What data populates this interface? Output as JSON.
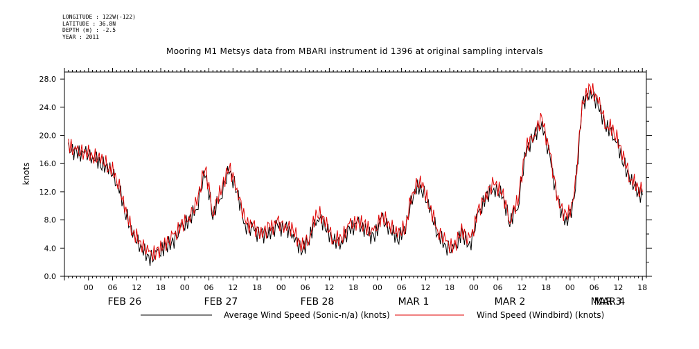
{
  "header": {
    "longitude": "LONGITUDE : 122W(-122)",
    "latitude": "LATITUDE : 36.8N",
    "depth": "DEPTH (m) : -2.5",
    "year": "YEAR : 2011"
  },
  "chart_data": {
    "type": "line",
    "title": "Mooring M1 Metsys data from MBARI instrument id 1396 at original sampling intervals",
    "xlabel": "",
    "ylabel": "knots",
    "xlim_hours": [
      -6,
      139
    ],
    "ylim": [
      0,
      29
    ],
    "yticks": [
      0.0,
      4.0,
      8.0,
      12.0,
      16.0,
      20.0,
      24.0,
      28.0
    ],
    "ytick_labels": [
      "0.0",
      "4.0",
      "8.0",
      "12.0",
      "16.0",
      "20.0",
      "24.0",
      "28.0"
    ],
    "hour_ticks": [
      0,
      6,
      12,
      18,
      24,
      30,
      36,
      42,
      48,
      54,
      60,
      66,
      72,
      78,
      84,
      90,
      96,
      102,
      108,
      114,
      120,
      126,
      132,
      138
    ],
    "hour_tick_labels": [
      "00",
      "06",
      "12",
      "18",
      "00",
      "06",
      "12",
      "18",
      "00",
      "06",
      "12",
      "18",
      "00",
      "06",
      "12",
      "18",
      "00",
      "06",
      "12",
      "18",
      "00",
      "06",
      "12",
      "18"
    ],
    "day_labels": [
      {
        "hour": 9,
        "label": "FEB 26"
      },
      {
        "hour": 33,
        "label": "FEB 27"
      },
      {
        "hour": 57,
        "label": "FEB 28"
      },
      {
        "hour": 81,
        "label": "MAR  1"
      },
      {
        "hour": 105,
        "label": "MAR  2"
      },
      {
        "hour": 129,
        "label": "MAR  3"
      },
      {
        "hour": 153,
        "label": "MAR  4"
      }
    ],
    "series": [
      {
        "name": "Average Wind Speed (Sonic-n/a) (knots)",
        "color": "#000000",
        "x_hours": [
          -5,
          -3,
          -1,
          1,
          3,
          5,
          7,
          9,
          11,
          13,
          15,
          17,
          19,
          21,
          23,
          25,
          27,
          29,
          31,
          33,
          35,
          37,
          39,
          41,
          43,
          45,
          47,
          49,
          51,
          53,
          55,
          57,
          59,
          61,
          63,
          65,
          67,
          69,
          71,
          73,
          75,
          77,
          79,
          81,
          83,
          85,
          87,
          89,
          91,
          93,
          95,
          97,
          99,
          101,
          103,
          105,
          107,
          109,
          111,
          113,
          115,
          117,
          119,
          121,
          123,
          125,
          127,
          129,
          131,
          133,
          135,
          137,
          138
        ],
        "y": [
          19,
          18,
          17.5,
          17,
          15.5,
          14.5,
          13,
          9,
          5.5,
          4.5,
          3,
          3.5,
          5,
          5.5,
          7,
          8,
          9.5,
          14,
          8,
          11,
          14.5,
          12,
          7.5,
          7,
          6.5,
          7,
          7.5,
          7,
          6,
          3,
          4.5,
          8,
          6.5,
          4.5,
          5,
          7,
          8,
          7.5,
          6,
          8.5,
          7,
          5,
          6,
          11.5,
          12,
          9,
          6,
          4.5,
          4,
          7,
          5,
          9,
          11.5,
          12.5,
          11,
          7,
          9.5,
          17,
          19.5,
          22,
          17,
          11,
          8.5,
          11,
          24.5,
          26.5,
          24,
          20.5,
          19.5,
          16,
          13,
          12,
          11.5
        ]
      },
      {
        "name": "Wind Speed (Windbird) (knots)",
        "color": "#e00000",
        "x_hours": [
          -5,
          -3,
          -1,
          1,
          3,
          5,
          7,
          9,
          11,
          13,
          15,
          17,
          19,
          21,
          23,
          25,
          27,
          29,
          31,
          33,
          35,
          37,
          39,
          41,
          43,
          45,
          47,
          49,
          51,
          53,
          55,
          57,
          59,
          61,
          63,
          65,
          67,
          69,
          71,
          73,
          75,
          77,
          79,
          81,
          83,
          85,
          87,
          89,
          91,
          93,
          95,
          97,
          99,
          101,
          103,
          105,
          107,
          109,
          111,
          113,
          115,
          117,
          119,
          121,
          123,
          125,
          127,
          129,
          131,
          133,
          135,
          137,
          138
        ],
        "y": [
          19.5,
          18,
          18,
          17,
          16,
          15,
          13.5,
          9,
          6,
          5,
          3.5,
          4,
          5.5,
          6,
          7.5,
          8.5,
          10,
          15,
          8.5,
          11.5,
          15,
          12.5,
          8,
          7.5,
          7,
          7.5,
          8,
          7.5,
          6.5,
          3.5,
          5,
          8.5,
          7,
          5,
          5.5,
          7.5,
          8.5,
          8,
          6.5,
          9,
          7.5,
          5.5,
          6.5,
          12,
          12.5,
          9.5,
          6.5,
          5,
          4.5,
          7.5,
          5.5,
          9.5,
          12,
          13,
          11.5,
          7.5,
          10,
          17.5,
          20,
          22.5,
          17.5,
          11.5,
          9,
          11.5,
          25,
          27,
          24.5,
          21,
          20,
          16.5,
          13.5,
          12.5,
          12
        ]
      }
    ],
    "legend": [
      {
        "name": "Average Wind Speed (Sonic-n/a) (knots)",
        "color": "#000000"
      },
      {
        "name": "Wind Speed (Windbird) (knots)",
        "color": "#e00000"
      }
    ]
  }
}
